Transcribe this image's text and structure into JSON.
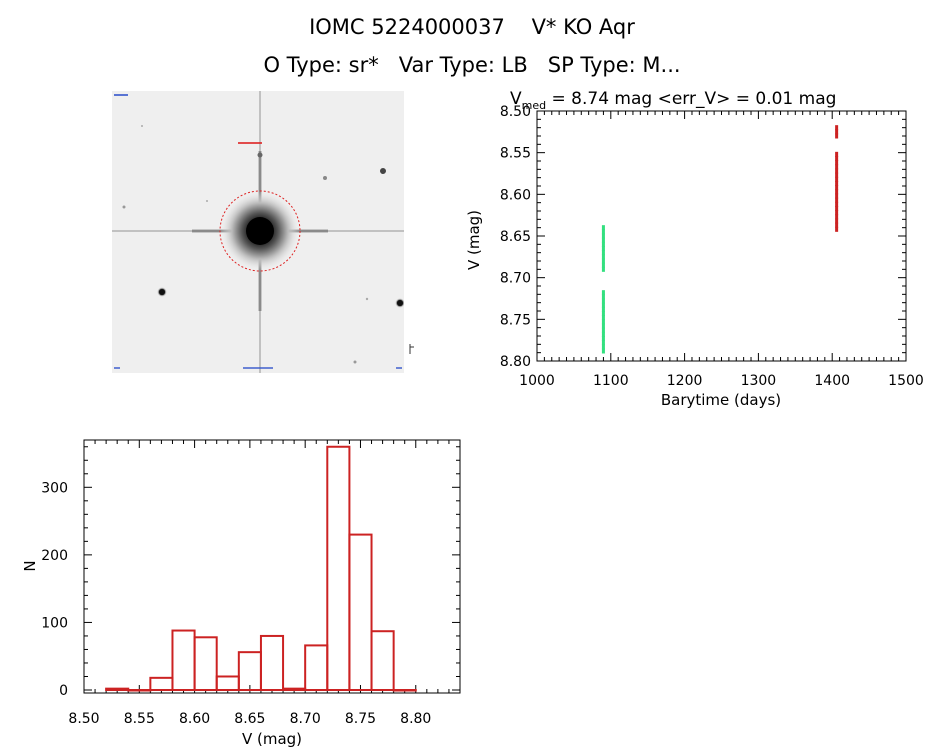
{
  "header": {
    "title": "IOMC 5224000037    V* KO Aqr",
    "subtitle": "O Type: sr*   Var Type: LB   SP Type: M..."
  },
  "image_panel": {
    "description_icon": "star-field-icon",
    "top_left_label": "",
    "target_label": "",
    "bottom_label": ""
  },
  "chart_data": [
    {
      "type": "scatter",
      "title_vmed_symbol": "V",
      "title_vmed_sub": "med",
      "title_rest": " = 8.74 mag <err_V> = 0.01 mag",
      "xlabel": "Barytime (days)",
      "ylabel": "V (mag)",
      "xlim": [
        1000,
        1500
      ],
      "ylim": [
        8.8,
        8.5
      ],
      "yreversed": true,
      "xticks": [
        "1000",
        "1100",
        "1200",
        "1300",
        "1400",
        "1500"
      ],
      "yticks": [
        "8.50",
        "8.55",
        "8.60",
        "8.65",
        "8.70",
        "8.75",
        "8.80"
      ],
      "series": [
        {
          "color": "#33e07f",
          "points": [
            [
              1090,
              8.64
            ],
            [
              1090,
              8.645
            ],
            [
              1090,
              8.65
            ],
            [
              1090,
              8.655
            ],
            [
              1090,
              8.66
            ],
            [
              1090,
              8.665
            ],
            [
              1090,
              8.67
            ],
            [
              1090,
              8.675
            ],
            [
              1090,
              8.68
            ],
            [
              1090,
              8.685
            ],
            [
              1090,
              8.69
            ],
            [
              1090,
              8.718
            ],
            [
              1090,
              8.723
            ],
            [
              1090,
              8.728
            ],
            [
              1090,
              8.733
            ],
            [
              1090,
              8.738
            ],
            [
              1090,
              8.743
            ],
            [
              1090,
              8.748
            ],
            [
              1090,
              8.753
            ],
            [
              1090,
              8.758
            ],
            [
              1090,
              8.763
            ],
            [
              1090,
              8.768
            ],
            [
              1090,
              8.773
            ],
            [
              1090,
              8.778
            ],
            [
              1090,
              8.783
            ],
            [
              1090,
              8.788
            ]
          ]
        },
        {
          "color": "#cc2222",
          "points": [
            [
              1406,
              8.52
            ],
            [
              1406,
              8.525
            ],
            [
              1406,
              8.53
            ],
            [
              1406,
              8.552
            ],
            [
              1406,
              8.557
            ],
            [
              1406,
              8.562
            ],
            [
              1406,
              8.567
            ],
            [
              1406,
              8.572
            ],
            [
              1406,
              8.577
            ],
            [
              1406,
              8.582
            ],
            [
              1406,
              8.587
            ],
            [
              1406,
              8.592
            ],
            [
              1406,
              8.597
            ],
            [
              1406,
              8.602
            ],
            [
              1406,
              8.607
            ],
            [
              1406,
              8.612
            ],
            [
              1406,
              8.617
            ],
            [
              1406,
              8.622
            ],
            [
              1406,
              8.627
            ],
            [
              1406,
              8.632
            ],
            [
              1406,
              8.637
            ],
            [
              1406,
              8.642
            ]
          ]
        }
      ]
    },
    {
      "type": "bar",
      "xlabel": "V (mag)",
      "ylabel": "N",
      "xlim": [
        8.5,
        8.84
      ],
      "ylim": [
        0,
        370
      ],
      "xticks": [
        "8.50",
        "8.55",
        "8.60",
        "8.65",
        "8.70",
        "8.75",
        "8.80"
      ],
      "yticks": [
        "0",
        "100",
        "200",
        "300"
      ],
      "color": "#cc2222",
      "bins": [
        {
          "start": 8.52,
          "end": 8.54,
          "value": 2
        },
        {
          "start": 8.54,
          "end": 8.56,
          "value": 0
        },
        {
          "start": 8.56,
          "end": 8.58,
          "value": 18
        },
        {
          "start": 8.58,
          "end": 8.6,
          "value": 88
        },
        {
          "start": 8.6,
          "end": 8.62,
          "value": 78
        },
        {
          "start": 8.62,
          "end": 8.64,
          "value": 20
        },
        {
          "start": 8.64,
          "end": 8.66,
          "value": 56
        },
        {
          "start": 8.66,
          "end": 8.68,
          "value": 80
        },
        {
          "start": 8.68,
          "end": 8.7,
          "value": 2
        },
        {
          "start": 8.7,
          "end": 8.72,
          "value": 66
        },
        {
          "start": 8.72,
          "end": 8.74,
          "value": 360
        },
        {
          "start": 8.74,
          "end": 8.76,
          "value": 230
        },
        {
          "start": 8.76,
          "end": 8.78,
          "value": 87
        },
        {
          "start": 8.78,
          "end": 8.8,
          "value": 0
        }
      ]
    }
  ]
}
